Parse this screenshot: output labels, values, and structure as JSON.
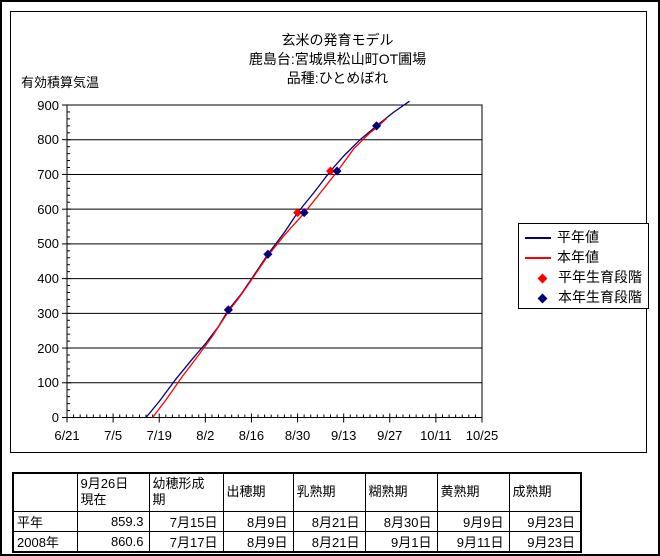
{
  "chart": {
    "title_lines": [
      "玄米の発育モデル",
      "鹿島台:宮城県松山町OT圃場",
      "品種:ひとめぼれ"
    ],
    "y_axis_label": "有効積算気温"
  },
  "chart_data": {
    "type": "line",
    "title": "玄米の発育モデル",
    "subtitle": "鹿島台:宮城県松山町OT圃場 品種:ひとめぼれ",
    "ylabel": "有効積算気温",
    "ylim": [
      0,
      900
    ],
    "y_tick_step": 100,
    "y_minor_step": 20,
    "x_minor_step_days": 2,
    "grid": "horizontal",
    "legend_position": "right",
    "x_tick_labels": [
      "6/21",
      "7/5",
      "7/19",
      "8/2",
      "8/16",
      "8/30",
      "9/13",
      "9/27",
      "10/11",
      "10/25"
    ],
    "series": [
      {
        "name": "平年値",
        "color": "#000080",
        "kind": "line",
        "points": [
          [
            "7/15",
            0
          ],
          [
            "7/19",
            46
          ],
          [
            "7/24",
            110
          ],
          [
            "7/29",
            168
          ],
          [
            "8/2",
            212
          ],
          [
            "8/6",
            262
          ],
          [
            "8/9",
            310
          ],
          [
            "8/13",
            357
          ],
          [
            "8/16",
            399
          ],
          [
            "8/21",
            470
          ],
          [
            "8/26",
            533
          ],
          [
            "8/30",
            590
          ],
          [
            "9/4",
            648
          ],
          [
            "9/9",
            710
          ],
          [
            "9/13",
            753
          ],
          [
            "9/18",
            800
          ],
          [
            "9/23",
            840
          ],
          [
            "9/28",
            878
          ],
          [
            "10/3",
            911
          ]
        ]
      },
      {
        "name": "本年値",
        "color": "#FF0000",
        "kind": "line",
        "points": [
          [
            "7/17",
            0
          ],
          [
            "7/21",
            50
          ],
          [
            "7/26",
            118
          ],
          [
            "7/31",
            180
          ],
          [
            "8/4",
            232
          ],
          [
            "8/9",
            305
          ],
          [
            "8/13",
            355
          ],
          [
            "8/16",
            396
          ],
          [
            "8/21",
            466
          ],
          [
            "8/26",
            525
          ],
          [
            "9/1",
            588
          ],
          [
            "9/6",
            648
          ],
          [
            "9/11",
            708
          ],
          [
            "9/16",
            773
          ],
          [
            "9/21",
            820
          ],
          [
            "9/23",
            835
          ],
          [
            "9/26",
            861
          ]
        ]
      },
      {
        "name": "平年生育段階",
        "color": "#FF0000",
        "kind": "diamond",
        "points": [
          [
            "8/9",
            310
          ],
          [
            "8/21",
            470
          ],
          [
            "8/30",
            590
          ],
          [
            "9/9",
            710
          ],
          [
            "9/23",
            840
          ]
        ]
      },
      {
        "name": "本年生育段階",
        "color": "#000080",
        "kind": "diamond",
        "points": [
          [
            "8/9",
            310
          ],
          [
            "8/21",
            470
          ],
          [
            "9/1",
            590
          ],
          [
            "9/11",
            710
          ],
          [
            "9/23",
            840
          ]
        ]
      }
    ]
  },
  "legend": {
    "items": [
      {
        "label": "平年値",
        "shape": "line",
        "color": "#000080"
      },
      {
        "label": "本年値",
        "shape": "line",
        "color": "#FF0000"
      },
      {
        "label": "平年生育段階",
        "shape": "diamond",
        "color": "#FF0000"
      },
      {
        "label": "本年生育段階",
        "shape": "diamond",
        "color": "#000080"
      }
    ]
  },
  "table": {
    "headers": [
      "",
      "9月26日\n現在",
      "幼穂形成\n期",
      "出穂期",
      "乳熟期",
      "糊熟期",
      "黄熟期",
      "成熟期"
    ],
    "rows": [
      {
        "label": "平年",
        "cells": [
          "859.3",
          "7月15日",
          "8月9日",
          "8月21日",
          "8月30日",
          "9月9日",
          "9月23日"
        ]
      },
      {
        "label": "2008年",
        "cells": [
          "860.6",
          "7月17日",
          "8月9日",
          "8月21日",
          "9月1日",
          "9月11日",
          "9月23日"
        ]
      }
    ]
  }
}
